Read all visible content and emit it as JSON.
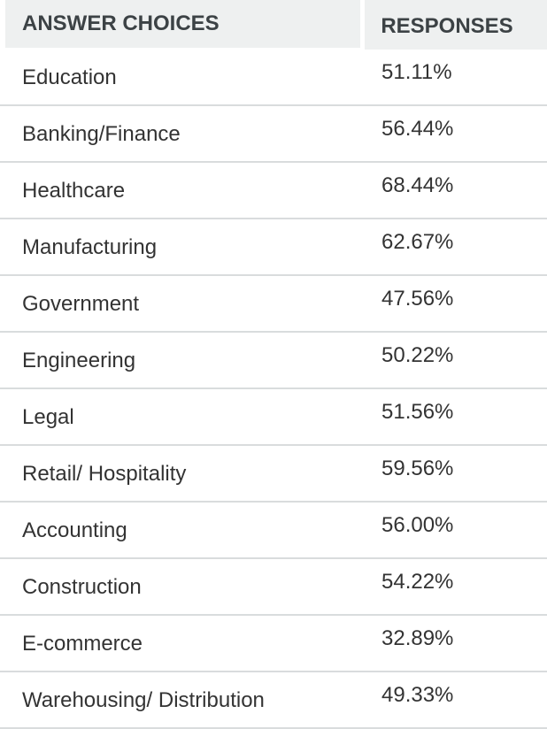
{
  "table": {
    "header": {
      "choice_label": "ANSWER CHOICES",
      "responses_label": "RESPONSES"
    },
    "rows": [
      {
        "choice": "Education",
        "response": "51.11%"
      },
      {
        "choice": "Banking/Finance",
        "response": "56.44%"
      },
      {
        "choice": "Healthcare",
        "response": "68.44%"
      },
      {
        "choice": "Manufacturing",
        "response": "62.67%"
      },
      {
        "choice": "Government",
        "response": "47.56%"
      },
      {
        "choice": "Engineering",
        "response": "50.22%"
      },
      {
        "choice": "Legal",
        "response": "51.56%"
      },
      {
        "choice": "Retail/ Hospitality",
        "response": "59.56%"
      },
      {
        "choice": "Accounting",
        "response": "56.00%"
      },
      {
        "choice": "Construction",
        "response": "54.22%"
      },
      {
        "choice": "E-commerce",
        "response": "32.89%"
      },
      {
        "choice": "Warehousing/ Distribution",
        "response": "49.33%"
      }
    ]
  },
  "colors": {
    "header_background": "#eef0f0",
    "header_text": "#3c4245",
    "body_text": "#333333",
    "row_border": "#d9dcdd"
  }
}
